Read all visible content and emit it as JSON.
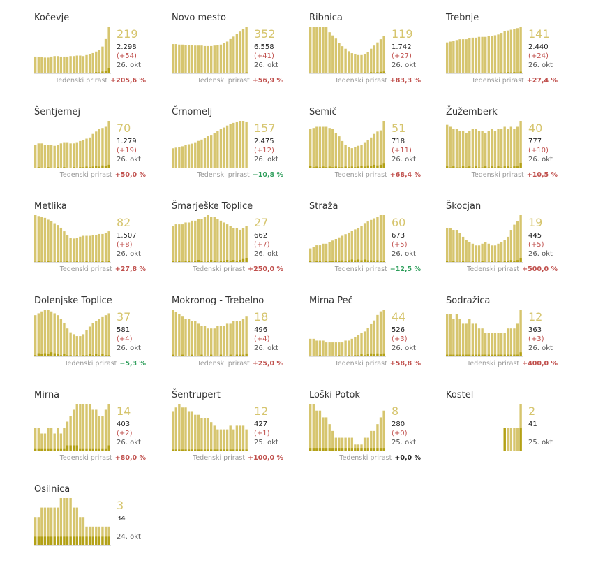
{
  "colors": {
    "light_bar": "#d6c56e",
    "dark_bar": "#b3a116",
    "big_number": "#d6c56e",
    "delta": "#c0504d",
    "growth_up": "#c0504d",
    "growth_down": "#2e9e5b"
  },
  "labels": {
    "weekly_growth": "Tedenski prirast"
  },
  "chart_data": [
    {
      "type": "bar",
      "title": "Kočevje",
      "active": "219",
      "total": "2.298",
      "new": "(+54)",
      "date": "26. okt",
      "growth": "+205,6 %",
      "dir": "up",
      "values": [
        70,
        68,
        68,
        66,
        66,
        70,
        72,
        72,
        70,
        70,
        70,
        72,
        72,
        74,
        74,
        72,
        76,
        80,
        84,
        90,
        96,
        110,
        140,
        190
      ],
      "daily": [
        4,
        2,
        3,
        2,
        2,
        4,
        3,
        3,
        5,
        3,
        4,
        3,
        6,
        4,
        3,
        2,
        4,
        6,
        5,
        8,
        7,
        10,
        14,
        24
      ]
    },
    {
      "type": "bar",
      "title": "Novo mesto",
      "active": "352",
      "total": "6.558",
      "new": "(+41)",
      "date": "26. okt",
      "growth": "+56,9 %",
      "dir": "up",
      "values": [
        120,
        120,
        118,
        118,
        116,
        116,
        116,
        114,
        114,
        114,
        112,
        112,
        112,
        114,
        116,
        118,
        124,
        130,
        140,
        150,
        162,
        170,
        180,
        190
      ],
      "daily": [
        2,
        3,
        2,
        2,
        3,
        2,
        2,
        3,
        2,
        2,
        3,
        2,
        3,
        2,
        3,
        3,
        4,
        3,
        4,
        5,
        4,
        6,
        5,
        7
      ]
    },
    {
      "type": "bar",
      "title": "Ribnica",
      "active": "119",
      "total": "1.742",
      "new": "(+27)",
      "date": "26. okt",
      "growth": "+83,3 %",
      "dir": "up",
      "values": [
        150,
        148,
        150,
        150,
        150,
        148,
        132,
        122,
        112,
        98,
        88,
        80,
        72,
        66,
        62,
        60,
        60,
        64,
        70,
        80,
        90,
        100,
        110,
        120
      ],
      "daily": [
        3,
        4,
        3,
        2,
        4,
        3,
        2,
        3,
        2,
        3,
        2,
        2,
        3,
        2,
        3,
        3,
        4,
        5,
        4,
        6,
        5,
        6,
        7,
        8
      ]
    },
    {
      "type": "bar",
      "title": "Trebnje",
      "active": "141",
      "total": "2.440",
      "new": "(+24)",
      "date": "26. okt",
      "growth": "+27,4 %",
      "dir": "up",
      "values": [
        80,
        82,
        84,
        86,
        88,
        88,
        88,
        90,
        92,
        92,
        94,
        94,
        94,
        96,
        96,
        98,
        100,
        104,
        108,
        110,
        112,
        114,
        116,
        120
      ],
      "daily": [
        2,
        3,
        2,
        3,
        2,
        3,
        2,
        3,
        3,
        2,
        3,
        3,
        2,
        3,
        3,
        4,
        3,
        4,
        4,
        5,
        4,
        5,
        4,
        6
      ]
    },
    {
      "type": "bar",
      "title": "Šentjernej",
      "active": "70",
      "total": "1.279",
      "new": "(+19)",
      "date": "26. okt",
      "growth": "+50,0 %",
      "dir": "up",
      "values": [
        40,
        42,
        42,
        40,
        40,
        40,
        38,
        40,
        42,
        44,
        44,
        42,
        42,
        44,
        46,
        48,
        50,
        52,
        58,
        62,
        66,
        68,
        70,
        80
      ],
      "daily": [
        1,
        2,
        1,
        1,
        2,
        1,
        1,
        2,
        1,
        2,
        1,
        1,
        2,
        1,
        2,
        2,
        3,
        2,
        3,
        4,
        3,
        5,
        4,
        6
      ]
    },
    {
      "type": "bar",
      "title": "Črnomelj",
      "active": "157",
      "total": "2.475",
      "new": "(+12)",
      "date": "26. okt",
      "growth": "−10,8 %",
      "dir": "down",
      "values": [
        60,
        62,
        64,
        66,
        70,
        72,
        74,
        78,
        82,
        86,
        90,
        96,
        100,
        106,
        112,
        118,
        122,
        128,
        132,
        136,
        140,
        142,
        142,
        140
      ],
      "daily": [
        2,
        1,
        2,
        2,
        1,
        2,
        2,
        1,
        2,
        2,
        2,
        1,
        2,
        2,
        1,
        2,
        2,
        2,
        1,
        2,
        2,
        1,
        2,
        2
      ]
    },
    {
      "type": "bar",
      "title": "Semič",
      "active": "51",
      "total": "718",
      "new": "(+11)",
      "date": "26. okt",
      "growth": "+68,4 %",
      "dir": "up",
      "values": [
        66,
        68,
        70,
        70,
        70,
        70,
        68,
        66,
        60,
        54,
        46,
        40,
        36,
        34,
        36,
        38,
        40,
        44,
        48,
        52,
        58,
        62,
        64,
        80
      ],
      "daily": [
        4,
        2,
        3,
        2,
        3,
        2,
        3,
        2,
        3,
        2,
        2,
        3,
        2,
        3,
        2,
        3,
        4,
        3,
        5,
        4,
        6,
        5,
        6,
        8
      ]
    },
    {
      "type": "bar",
      "title": "Žužemberk",
      "active": "40",
      "total": "777",
      "new": "(+10)",
      "date": "26. okt",
      "growth": "+10,5 %",
      "dir": "up",
      "values": [
        44,
        42,
        40,
        40,
        38,
        38,
        36,
        38,
        40,
        40,
        38,
        38,
        36,
        38,
        40,
        38,
        40,
        40,
        42,
        40,
        42,
        40,
        42,
        48
      ],
      "daily": [
        2,
        1,
        2,
        1,
        1,
        2,
        1,
        2,
        1,
        2,
        1,
        1,
        2,
        1,
        2,
        1,
        2,
        1,
        2,
        2,
        1,
        2,
        2,
        5
      ]
    },
    {
      "type": "bar",
      "title": "Metlika",
      "active": "82",
      "total": "1.507",
      "new": "(+8)",
      "date": "26. okt",
      "growth": "+27,8 %",
      "dir": "up",
      "values": [
        106,
        104,
        102,
        100,
        96,
        92,
        88,
        84,
        78,
        70,
        62,
        56,
        54,
        56,
        58,
        60,
        60,
        60,
        62,
        62,
        64,
        64,
        66,
        70
      ],
      "daily": [
        2,
        3,
        2,
        2,
        3,
        2,
        2,
        3,
        2,
        2,
        3,
        2,
        2,
        3,
        2,
        2,
        3,
        2,
        2,
        3,
        2,
        3,
        2,
        4
      ]
    },
    {
      "type": "bar",
      "title": "Šmarješke Toplice",
      "active": "27",
      "total": "662",
      "new": "(+7)",
      "date": "26. okt",
      "growth": "+250,0 %",
      "dir": "up",
      "values": [
        40,
        42,
        42,
        42,
        44,
        44,
        46,
        46,
        48,
        48,
        50,
        52,
        50,
        50,
        48,
        46,
        44,
        42,
        40,
        38,
        38,
        36,
        38,
        40
      ],
      "daily": [
        2,
        1,
        2,
        1,
        2,
        2,
        1,
        2,
        3,
        2,
        1,
        2,
        3,
        2,
        1,
        2,
        2,
        3,
        2,
        3,
        2,
        3,
        4,
        5
      ]
    },
    {
      "type": "bar",
      "title": "Straža",
      "active": "60",
      "total": "673",
      "new": "(+5)",
      "date": "26. okt",
      "growth": "−12,5 %",
      "dir": "down",
      "values": [
        18,
        20,
        22,
        22,
        24,
        24,
        26,
        28,
        30,
        32,
        34,
        36,
        38,
        40,
        42,
        44,
        46,
        50,
        52,
        54,
        56,
        58,
        60,
        60
      ],
      "daily": [
        2,
        1,
        2,
        2,
        1,
        2,
        2,
        2,
        3,
        2,
        3,
        2,
        3,
        4,
        3,
        4,
        3,
        4,
        3,
        3,
        2,
        3,
        2,
        2
      ]
    },
    {
      "type": "bar",
      "title": "Škocjan",
      "active": "19",
      "total": "445",
      "new": "(+5)",
      "date": "26. okt",
      "growth": "+500,0 %",
      "dir": "up",
      "values": [
        40,
        40,
        38,
        38,
        34,
        30,
        26,
        24,
        22,
        20,
        20,
        22,
        24,
        22,
        20,
        20,
        22,
        24,
        26,
        30,
        38,
        44,
        48,
        55
      ],
      "daily": [
        2,
        1,
        2,
        1,
        1,
        2,
        1,
        1,
        2,
        1,
        1,
        2,
        1,
        1,
        2,
        1,
        2,
        1,
        2,
        2,
        3,
        2,
        3,
        5
      ]
    },
    {
      "type": "bar",
      "title": "Dolenjske Toplice",
      "active": "37",
      "total": "581",
      "new": "(+4)",
      "date": "26. okt",
      "growth": "−5,3 %",
      "dir": "down",
      "values": [
        44,
        46,
        48,
        50,
        50,
        48,
        46,
        44,
        40,
        36,
        30,
        26,
        24,
        22,
        22,
        24,
        28,
        32,
        36,
        38,
        40,
        42,
        44,
        46
      ],
      "daily": [
        2,
        4,
        3,
        4,
        3,
        5,
        4,
        3,
        2,
        3,
        2,
        2,
        1,
        2,
        1,
        2,
        2,
        3,
        2,
        3,
        2,
        3,
        2,
        2
      ]
    },
    {
      "type": "bar",
      "title": "Mokronog - Trebelno",
      "active": "18",
      "total": "496",
      "new": "(+4)",
      "date": "26. okt",
      "growth": "+25,0 %",
      "dir": "up",
      "values": [
        40,
        38,
        36,
        34,
        32,
        32,
        30,
        30,
        28,
        26,
        26,
        24,
        24,
        24,
        26,
        26,
        26,
        28,
        28,
        30,
        30,
        30,
        32,
        34
      ],
      "daily": [
        2,
        1,
        1,
        2,
        1,
        1,
        2,
        1,
        1,
        2,
        1,
        1,
        2,
        1,
        1,
        2,
        1,
        1,
        2,
        1,
        2,
        2,
        2,
        3
      ]
    },
    {
      "type": "bar",
      "title": "Mirna Peč",
      "active": "44",
      "total": "526",
      "new": "(+3)",
      "date": "26. okt",
      "growth": "+58,8 %",
      "dir": "up",
      "values": [
        20,
        20,
        18,
        18,
        18,
        16,
        16,
        16,
        16,
        16,
        16,
        18,
        18,
        20,
        22,
        24,
        26,
        28,
        32,
        36,
        40,
        46,
        50,
        52
      ],
      "daily": [
        1,
        1,
        1,
        2,
        1,
        1,
        1,
        1,
        1,
        2,
        1,
        1,
        2,
        1,
        2,
        2,
        3,
        2,
        3,
        4,
        3,
        4,
        3,
        4
      ]
    },
    {
      "type": "bar",
      "title": "Sodražica",
      "active": "12",
      "total": "363",
      "new": "(+3)",
      "date": "26. okt",
      "growth": "+400,0 %",
      "dir": "up",
      "values": [
        18,
        18,
        16,
        18,
        16,
        14,
        14,
        16,
        14,
        14,
        12,
        12,
        10,
        10,
        10,
        10,
        10,
        10,
        10,
        12,
        12,
        12,
        14,
        20
      ],
      "daily": [
        1,
        1,
        1,
        1,
        1,
        1,
        1,
        1,
        1,
        1,
        1,
        1,
        1,
        1,
        1,
        1,
        1,
        1,
        1,
        1,
        1,
        1,
        1,
        2
      ]
    },
    {
      "type": "bar",
      "title": "Mirna",
      "active": "14",
      "total": "403",
      "new": "(+2)",
      "date": "26. okt",
      "growth": "+80,0 %",
      "dir": "up",
      "values": [
        8,
        8,
        6,
        6,
        8,
        8,
        6,
        8,
        6,
        8,
        10,
        12,
        14,
        16,
        16,
        16,
        16,
        16,
        14,
        14,
        12,
        12,
        14,
        16
      ],
      "daily": [
        1,
        1,
        1,
        1,
        1,
        1,
        1,
        1,
        1,
        1,
        2,
        2,
        2,
        2,
        1,
        1,
        1,
        1,
        1,
        1,
        1,
        1,
        1,
        2
      ]
    },
    {
      "type": "bar",
      "title": "Šentrupert",
      "active": "12",
      "total": "427",
      "new": "(+1)",
      "date": "25. okt",
      "growth": "+100,0 %",
      "dir": "up",
      "values": [
        22,
        24,
        26,
        24,
        24,
        22,
        22,
        20,
        20,
        18,
        18,
        18,
        16,
        14,
        12,
        12,
        12,
        12,
        14,
        12,
        14,
        14,
        14,
        12
      ],
      "daily": [
        1,
        1,
        1,
        1,
        1,
        1,
        1,
        1,
        1,
        1,
        1,
        1,
        1,
        1,
        1,
        1,
        1,
        1,
        1,
        1,
        1,
        1,
        1,
        1
      ]
    },
    {
      "type": "bar",
      "title": "Loški Potok",
      "active": "8",
      "total": "280",
      "new": "(+0)",
      "date": "25. okt",
      "growth": "+0,0 %",
      "dir": "zero",
      "values": [
        14,
        14,
        12,
        12,
        10,
        10,
        8,
        6,
        4,
        4,
        4,
        4,
        4,
        4,
        2,
        2,
        2,
        4,
        4,
        6,
        6,
        8,
        10,
        12
      ],
      "daily": [
        1,
        1,
        1,
        1,
        1,
        1,
        1,
        1,
        1,
        1,
        1,
        1,
        1,
        1,
        1,
        1,
        1,
        1,
        1,
        1,
        1,
        1,
        1,
        1
      ]
    },
    {
      "type": "bar",
      "title": "Kostel",
      "active": "2",
      "total": "41",
      "new": "",
      "date": "25. okt",
      "growth": "",
      "dir": "zero",
      "values": [
        0,
        0,
        0,
        0,
        0,
        0,
        0,
        0,
        0,
        0,
        0,
        0,
        0,
        0,
        0,
        0,
        0,
        0,
        1,
        1,
        1,
        1,
        1,
        2
      ],
      "daily": [
        0,
        0,
        0,
        0,
        0,
        0,
        0,
        0,
        0,
        0,
        0,
        0,
        0,
        0,
        0,
        0,
        0,
        0,
        1,
        0,
        0,
        0,
        0,
        1
      ]
    },
    {
      "type": "bar",
      "title": "Osilnica",
      "active": "3",
      "total": "34",
      "new": "",
      "date": "24. okt",
      "growth": "",
      "dir": "zero",
      "values": [
        3,
        3,
        4,
        4,
        4,
        4,
        4,
        4,
        5,
        5,
        5,
        5,
        4,
        4,
        3,
        3,
        2,
        2,
        2,
        2,
        2,
        2,
        2,
        2
      ],
      "daily": [
        1,
        1,
        1,
        1,
        1,
        1,
        1,
        1,
        1,
        1,
        1,
        1,
        1,
        1,
        1,
        1,
        1,
        1,
        1,
        1,
        1,
        1,
        1,
        1
      ]
    }
  ]
}
